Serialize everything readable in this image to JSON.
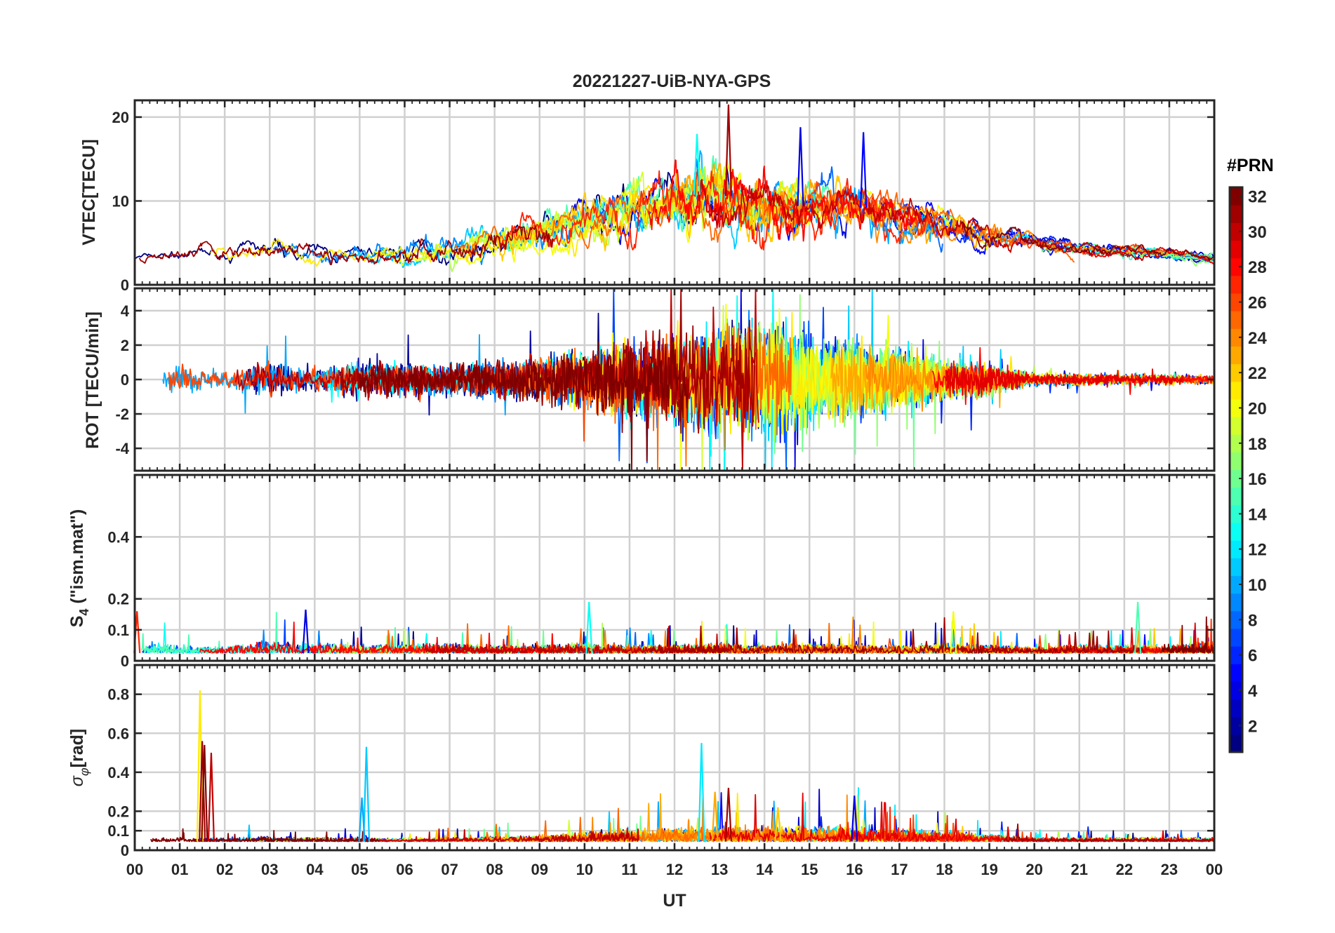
{
  "figure": {
    "title": "20221227-UiB-NYA-GPS",
    "xlabel": "UT"
  },
  "chart_data": {
    "type": "line",
    "title": "20221227-UiB-NYA-GPS",
    "x_ticks": [
      "00",
      "01",
      "02",
      "03",
      "04",
      "05",
      "06",
      "07",
      "08",
      "09",
      "10",
      "11",
      "12",
      "13",
      "14",
      "15",
      "16",
      "17",
      "18",
      "19",
      "20",
      "21",
      "22",
      "23",
      "00"
    ],
    "xlim": [
      0,
      24
    ],
    "xlabel": "UT",
    "grid": true,
    "colorbar": {
      "label": "#PRN",
      "range": [
        1,
        32
      ],
      "ticks": [
        "2",
        "4",
        "6",
        "8",
        "10",
        "12",
        "14",
        "16",
        "18",
        "20",
        "22",
        "24",
        "26",
        "28",
        "30",
        "32"
      ],
      "colormap": "jet"
    },
    "panels": [
      {
        "id": "vtec",
        "ylabel": "VTEC[TECU]",
        "ylim": [
          0,
          22
        ],
        "y_ticks": [
          "0",
          "10",
          "20"
        ],
        "y_tick_values": [
          0,
          10,
          20
        ],
        "envelope": {
          "hours": [
            0,
            1,
            2,
            3,
            4,
            5,
            6,
            7,
            8,
            9,
            10,
            11,
            12,
            13,
            14,
            15,
            16,
            17,
            18,
            19,
            20,
            21,
            22,
            23,
            24
          ],
          "mean": [
            3.2,
            3.5,
            3.6,
            4.2,
            3.8,
            3.6,
            4,
            4.2,
            4.8,
            6,
            7.5,
            9,
            10.5,
            11,
            9,
            9.5,
            9.5,
            8,
            7,
            6,
            5,
            4.2,
            4,
            3.8,
            3
          ],
          "spread": [
            0.8,
            1.2,
            1.5,
            2,
            1.8,
            1.6,
            2.2,
            2.5,
            3,
            3.5,
            4,
            4.5,
            5,
            6,
            5,
            4.5,
            4,
            3.5,
            3,
            2.5,
            1.5,
            1.2,
            1.2,
            1,
            0.8
          ]
        },
        "notable_peaks": [
          {
            "hour": 13.2,
            "value": 21.5,
            "prn": 31
          },
          {
            "hour": 14.8,
            "value": 18.8,
            "prn": 4
          },
          {
            "hour": 16.2,
            "value": 18.2,
            "prn": 5
          },
          {
            "hour": 12.5,
            "value": 18,
            "prn": 13
          }
        ]
      },
      {
        "id": "rot",
        "ylabel": "ROT [TECU/min]",
        "ylim": [
          -5.3,
          5.3
        ],
        "y_ticks": [
          "-4",
          "-2",
          "0",
          "2",
          "4"
        ],
        "y_tick_values": [
          -4,
          -2,
          0,
          2,
          4
        ],
        "envelope": {
          "hours": [
            0,
            1,
            2,
            3,
            4,
            5,
            6,
            7,
            8,
            9,
            10,
            11,
            12,
            13,
            14,
            15,
            16,
            17,
            18,
            19,
            20,
            21,
            22,
            23,
            24
          ],
          "spread": [
            0.5,
            1.5,
            0.9,
            1.8,
            1,
            1.8,
            1.6,
            1.5,
            1.8,
            2.2,
            3,
            3.8,
            4.5,
            5.5,
            5.5,
            4.5,
            3.8,
            3,
            2,
            1.5,
            0.6,
            0.6,
            0.5,
            0.5,
            0.4
          ]
        }
      },
      {
        "id": "s4",
        "ylabel": "S4 (\"ism.mat\")",
        "ylabel_main": "S",
        "ylabel_sub": "4",
        "ylabel_tail": " (\"ism.mat\")",
        "ylim": [
          0,
          0.6
        ],
        "y_ticks": [
          "0",
          "0.1",
          "0.2",
          "0.4"
        ],
        "y_tick_values": [
          0,
          0.1,
          0.2,
          0.4
        ],
        "envelope": {
          "hours": [
            0,
            1,
            2,
            3,
            4,
            5,
            6,
            7,
            8,
            9,
            10,
            11,
            12,
            13,
            14,
            15,
            16,
            17,
            18,
            19,
            20,
            21,
            22,
            23,
            24
          ],
          "base": 0.025,
          "spread": [
            0.06,
            0.04,
            0.03,
            0.06,
            0.05,
            0.04,
            0.04,
            0.05,
            0.04,
            0.04,
            0.05,
            0.04,
            0.04,
            0.05,
            0.04,
            0.05,
            0.05,
            0.04,
            0.05,
            0.04,
            0.03,
            0.04,
            0.04,
            0.04,
            0.06
          ]
        },
        "notable_peaks": [
          {
            "hour": 10.1,
            "value": 0.19,
            "prn": 13
          },
          {
            "hour": 22.3,
            "value": 0.19,
            "prn": 15
          },
          {
            "hour": 3.8,
            "value": 0.165,
            "prn": 4
          },
          {
            "hour": 18.2,
            "value": 0.16,
            "prn": 20
          },
          {
            "hour": 0.05,
            "value": 0.16,
            "prn": 27
          }
        ]
      },
      {
        "id": "sigma",
        "ylabel": "σφ[rad]",
        "ylabel_main": "σ",
        "ylabel_sub": "φ",
        "ylabel_tail": "[rad]",
        "ylim": [
          0,
          0.95
        ],
        "y_ticks": [
          "0",
          "0.1",
          "0.2",
          "0.4",
          "0.6",
          "0.8"
        ],
        "y_tick_values": [
          0,
          0.1,
          0.2,
          0.4,
          0.6,
          0.8
        ],
        "envelope": {
          "hours": [
            0,
            1,
            2,
            3,
            4,
            5,
            6,
            7,
            8,
            9,
            10,
            11,
            12,
            13,
            14,
            15,
            16,
            17,
            18,
            19,
            20,
            21,
            22,
            23,
            24
          ],
          "base": 0.045,
          "spread": [
            0.03,
            0.03,
            0.03,
            0.04,
            0.03,
            0.03,
            0.02,
            0.03,
            0.04,
            0.05,
            0.08,
            0.1,
            0.12,
            0.12,
            0.12,
            0.12,
            0.12,
            0.1,
            0.08,
            0.06,
            0.03,
            0.03,
            0.03,
            0.03,
            0.03
          ]
        },
        "notable_peaks": [
          {
            "hour": 1.45,
            "value": 0.82,
            "prn": 21
          },
          {
            "hour": 1.5,
            "value": 0.56,
            "prn": 31
          },
          {
            "hour": 1.55,
            "value": 0.54,
            "prn": 32
          },
          {
            "hour": 1.7,
            "value": 0.5,
            "prn": 30
          },
          {
            "hour": 5.15,
            "value": 0.53,
            "prn": 11
          },
          {
            "hour": 5.05,
            "value": 0.27,
            "prn": 10
          },
          {
            "hour": 12.6,
            "value": 0.55,
            "prn": 12
          },
          {
            "hour": 13.2,
            "value": 0.32,
            "prn": 31
          },
          {
            "hour": 12.9,
            "value": 0.3,
            "prn": 23
          },
          {
            "hour": 16.0,
            "value": 0.28,
            "prn": 4
          },
          {
            "hour": 14.3,
            "value": 0.22,
            "prn": 22
          }
        ]
      }
    ]
  }
}
